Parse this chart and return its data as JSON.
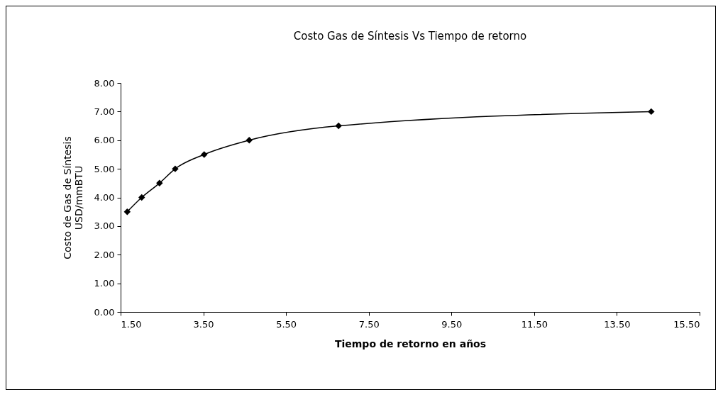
{
  "chart_data": {
    "type": "line",
    "title": "Costo Gas de Síntesis Vs Tiempo de retorno",
    "xlabel": "Tiempo de retorno en años",
    "ylabel": "Costo de Gas de Síntesis\nUSD/mmBTU",
    "x": [
      1.66,
      2.01,
      2.44,
      2.82,
      3.52,
      4.61,
      6.77,
      14.33
    ],
    "series": [
      {
        "color": "#000000",
        "values": [
          3.5,
          4.0,
          4.5,
          5.0,
          5.5,
          6.0,
          6.5,
          7.0
        ]
      }
    ],
    "marker": "diamond",
    "legend": false,
    "grid": false,
    "xlim": [
      1.5,
      15.5
    ],
    "xticks": [
      {
        "value": 1.5,
        "label": "1.50"
      },
      {
        "value": 3.5,
        "label": "3.50"
      },
      {
        "value": 5.5,
        "label": "5.50"
      },
      {
        "value": 7.5,
        "label": "7.50"
      },
      {
        "value": 9.5,
        "label": "9.50"
      },
      {
        "value": 11.5,
        "label": "11.50"
      },
      {
        "value": 13.5,
        "label": "13.50"
      },
      {
        "value": 15.5,
        "label": "15.50"
      }
    ],
    "ylim": [
      0,
      8
    ],
    "yticks": [
      {
        "value": 0,
        "label": "0.00"
      },
      {
        "value": 1,
        "label": "1.00"
      },
      {
        "value": 2,
        "label": "2.00"
      },
      {
        "value": 3,
        "label": "3.00"
      },
      {
        "value": 4,
        "label": "4.00"
      },
      {
        "value": 5,
        "label": "5.00"
      },
      {
        "value": 6,
        "label": "6.00"
      },
      {
        "value": 7,
        "label": "7.00"
      },
      {
        "value": 8,
        "label": "8.00"
      }
    ]
  }
}
